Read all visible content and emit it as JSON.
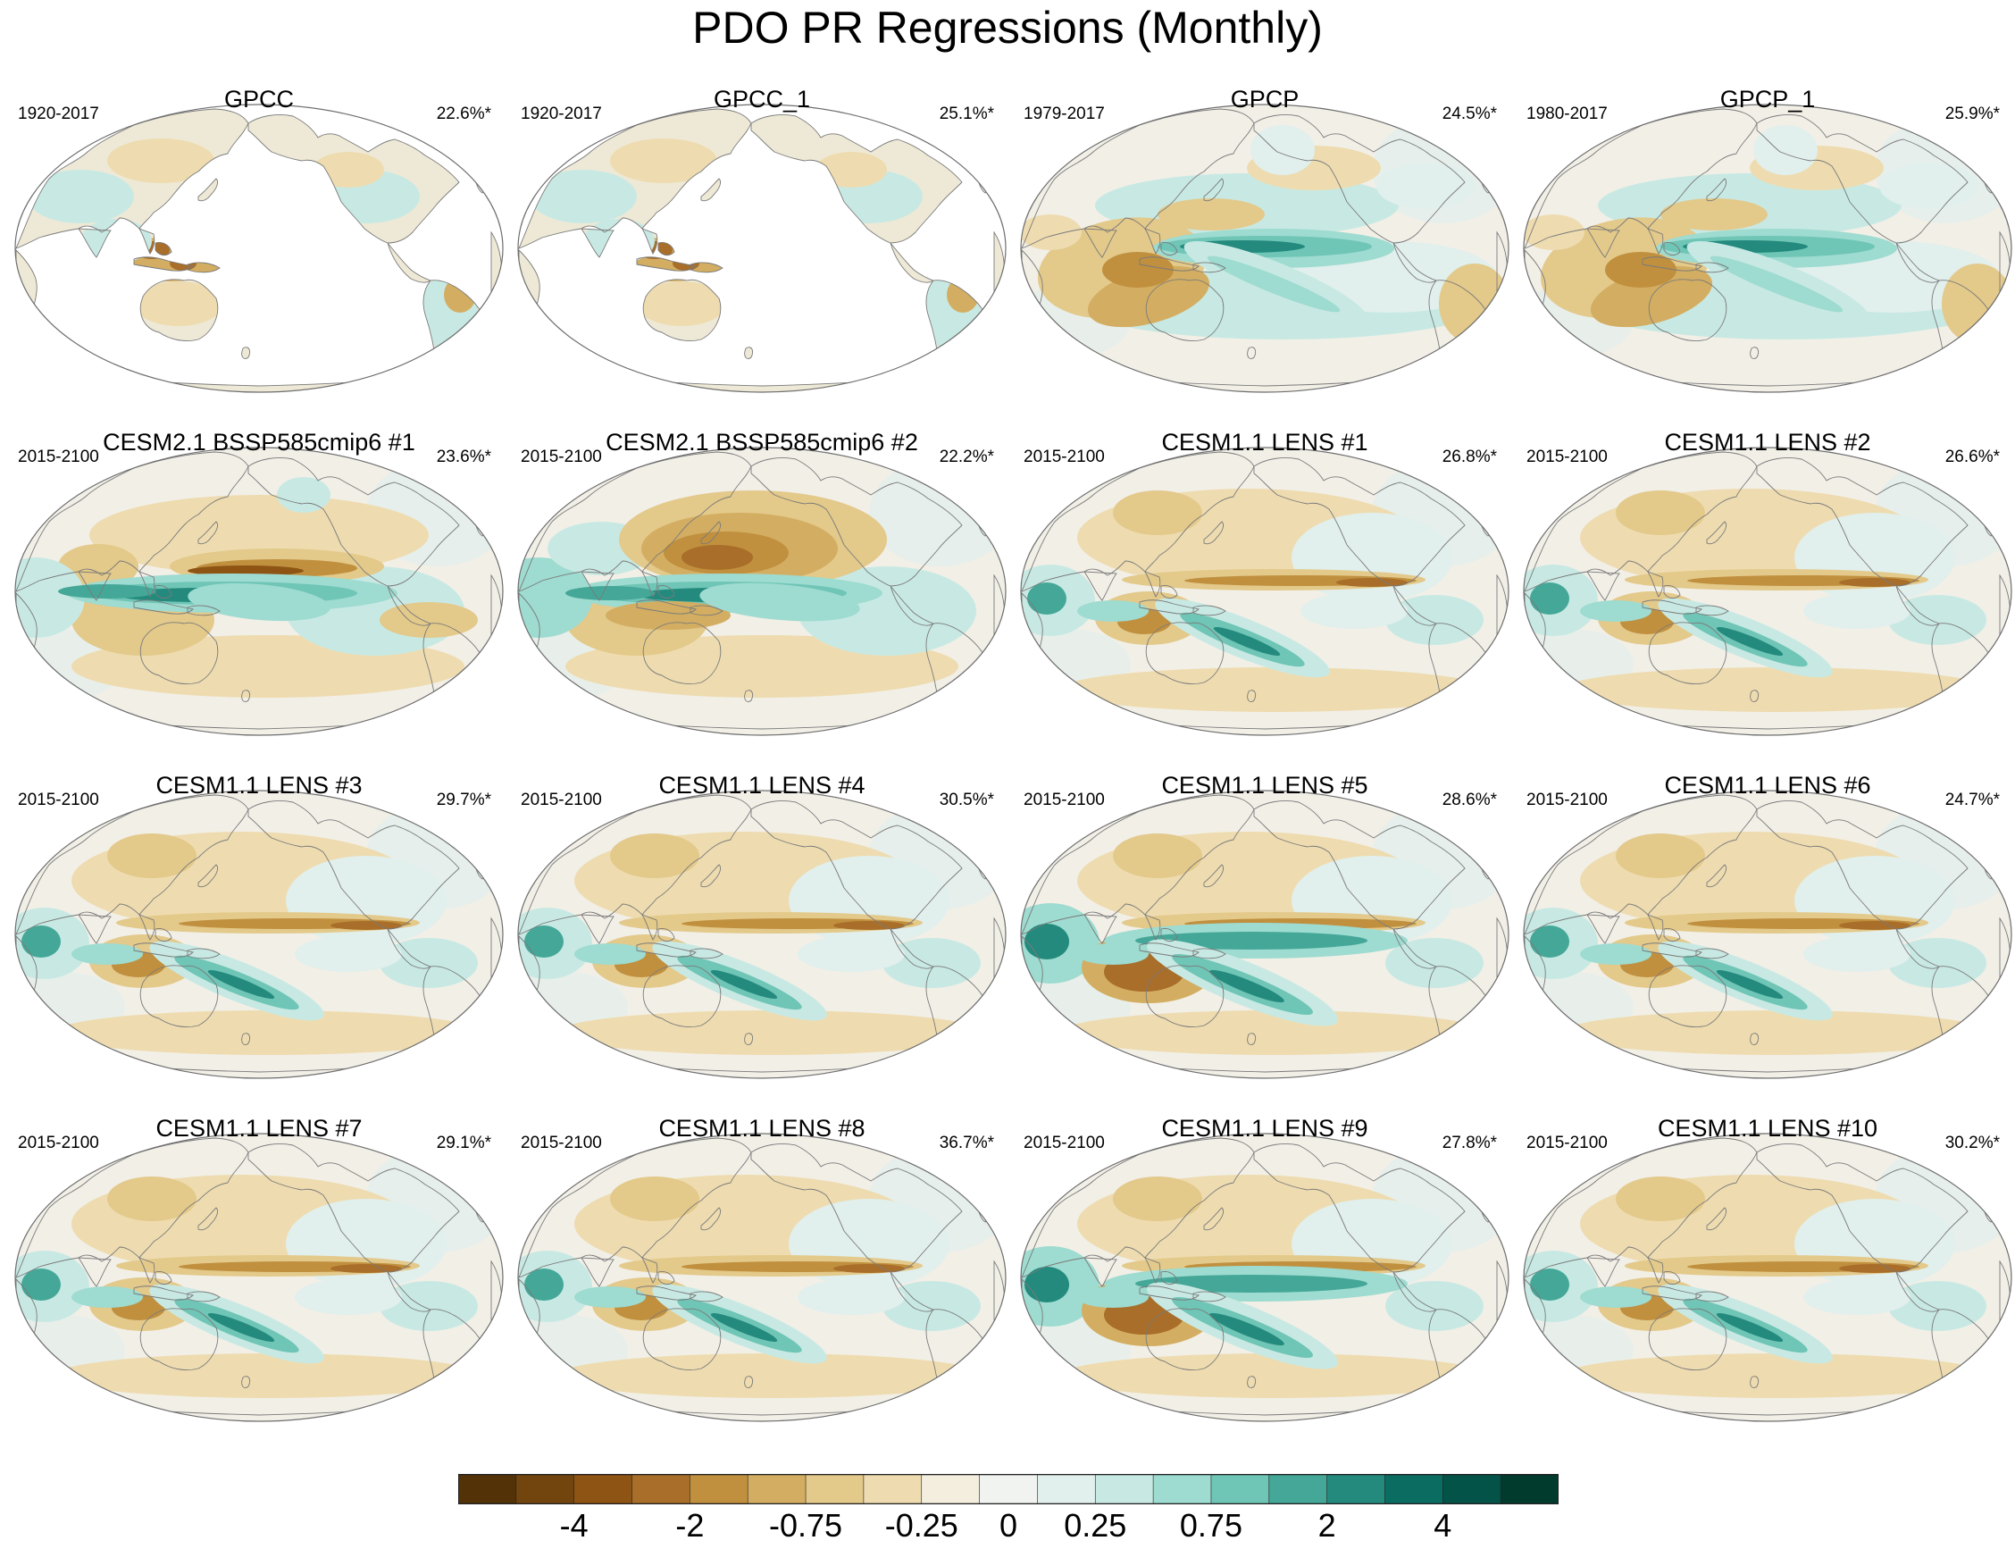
{
  "title": "PDO PR Regressions (Monthly)",
  "colors": {
    "ocean_bg": "#f2efe7",
    "land_blank": "#ffffff",
    "coast": "#7a7a7a",
    "outline": "#6e6e6e"
  },
  "panels": [
    {
      "title": "GPCC",
      "period": "1920-2017",
      "percent": "22.6%*",
      "style": "land"
    },
    {
      "title": "GPCC_1",
      "period": "1920-2017",
      "percent": "25.1%*",
      "style": "land"
    },
    {
      "title": "GPCP",
      "period": "1979-2017",
      "percent": "24.5%*",
      "style": "gpcp"
    },
    {
      "title": "GPCP_1",
      "period": "1980-2017",
      "percent": "25.9%*",
      "style": "gpcp"
    },
    {
      "title": "CESM2.1 BSSP585cmip6 #1",
      "period": "2015-2100",
      "percent": "23.6%*",
      "style": "cesm2"
    },
    {
      "title": "CESM2.1 BSSP585cmip6 #2",
      "period": "2015-2100",
      "percent": "22.2%*",
      "style": "cesm2b"
    },
    {
      "title": "CESM1.1 LENS #1",
      "period": "2015-2100",
      "percent": "26.8%*",
      "style": "lens"
    },
    {
      "title": "CESM1.1 LENS #2",
      "period": "2015-2100",
      "percent": "26.6%*",
      "style": "lens"
    },
    {
      "title": "CESM1.1 LENS #3",
      "period": "2015-2100",
      "percent": "29.7%*",
      "style": "lens"
    },
    {
      "title": "CESM1.1 LENS #4",
      "period": "2015-2100",
      "percent": "30.5%*",
      "style": "lens"
    },
    {
      "title": "CESM1.1 LENS #5",
      "period": "2015-2100",
      "percent": "28.6%*",
      "style": "lensStrong"
    },
    {
      "title": "CESM1.1 LENS #6",
      "period": "2015-2100",
      "percent": "24.7%*",
      "style": "lens"
    },
    {
      "title": "CESM1.1 LENS #7",
      "period": "2015-2100",
      "percent": "29.1%*",
      "style": "lens"
    },
    {
      "title": "CESM1.1 LENS #8",
      "period": "2015-2100",
      "percent": "36.7%*",
      "style": "lens"
    },
    {
      "title": "CESM1.1 LENS #9",
      "period": "2015-2100",
      "percent": "27.8%*",
      "style": "lensStrong"
    },
    {
      "title": "CESM1.1 LENS #10",
      "period": "2015-2100",
      "percent": "30.2%*",
      "style": "lens"
    }
  ],
  "colorbar": {
    "colors": [
      "#533208",
      "#73450e",
      "#8e5413",
      "#a86e2a",
      "#c0903f",
      "#d3ae62",
      "#e3c98a",
      "#eedcb0",
      "#f3eede",
      "#f1f3f0",
      "#e1efed",
      "#c8e9e3",
      "#9edbd0",
      "#6fc5b6",
      "#44a798",
      "#238a7d",
      "#0b6d62",
      "#045348",
      "#003b2d"
    ],
    "labels": [
      "-4",
      "-2",
      "-0.75",
      "-0.25",
      "0",
      "0.25",
      "0.75",
      "2",
      "4"
    ]
  }
}
